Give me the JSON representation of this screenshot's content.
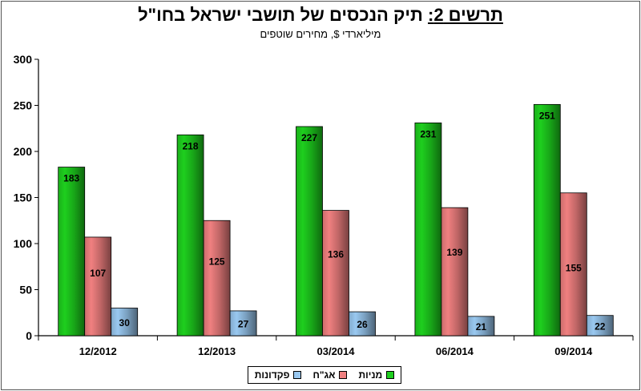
{
  "header": {
    "title_prefix": "תרשים 2:",
    "title_main": "תיק הנכסים של תושבי ישראל בחו\"ל",
    "subtitle": "מיליארדי $, מחירים שוטפים"
  },
  "colors": {
    "stocks": "#1ecf1e",
    "bonds": "#f08080",
    "deposits": "#99c8f0"
  },
  "chart_data": {
    "type": "bar",
    "categories": [
      "12/2012",
      "12/2013",
      "03/2014",
      "06/2014",
      "09/2014"
    ],
    "series": [
      {
        "name": "מניות",
        "values": [
          183,
          218,
          227,
          231,
          251
        ]
      },
      {
        "name": "אג\"ח",
        "values": [
          107,
          125,
          136,
          139,
          155
        ]
      },
      {
        "name": "פקדונות",
        "values": [
          30,
          27,
          26,
          21,
          22
        ]
      }
    ],
    "ylim": [
      0,
      300
    ],
    "yticks": [
      0,
      50,
      100,
      150,
      200,
      250,
      300
    ],
    "grid": false,
    "legend_position": "bottom"
  }
}
